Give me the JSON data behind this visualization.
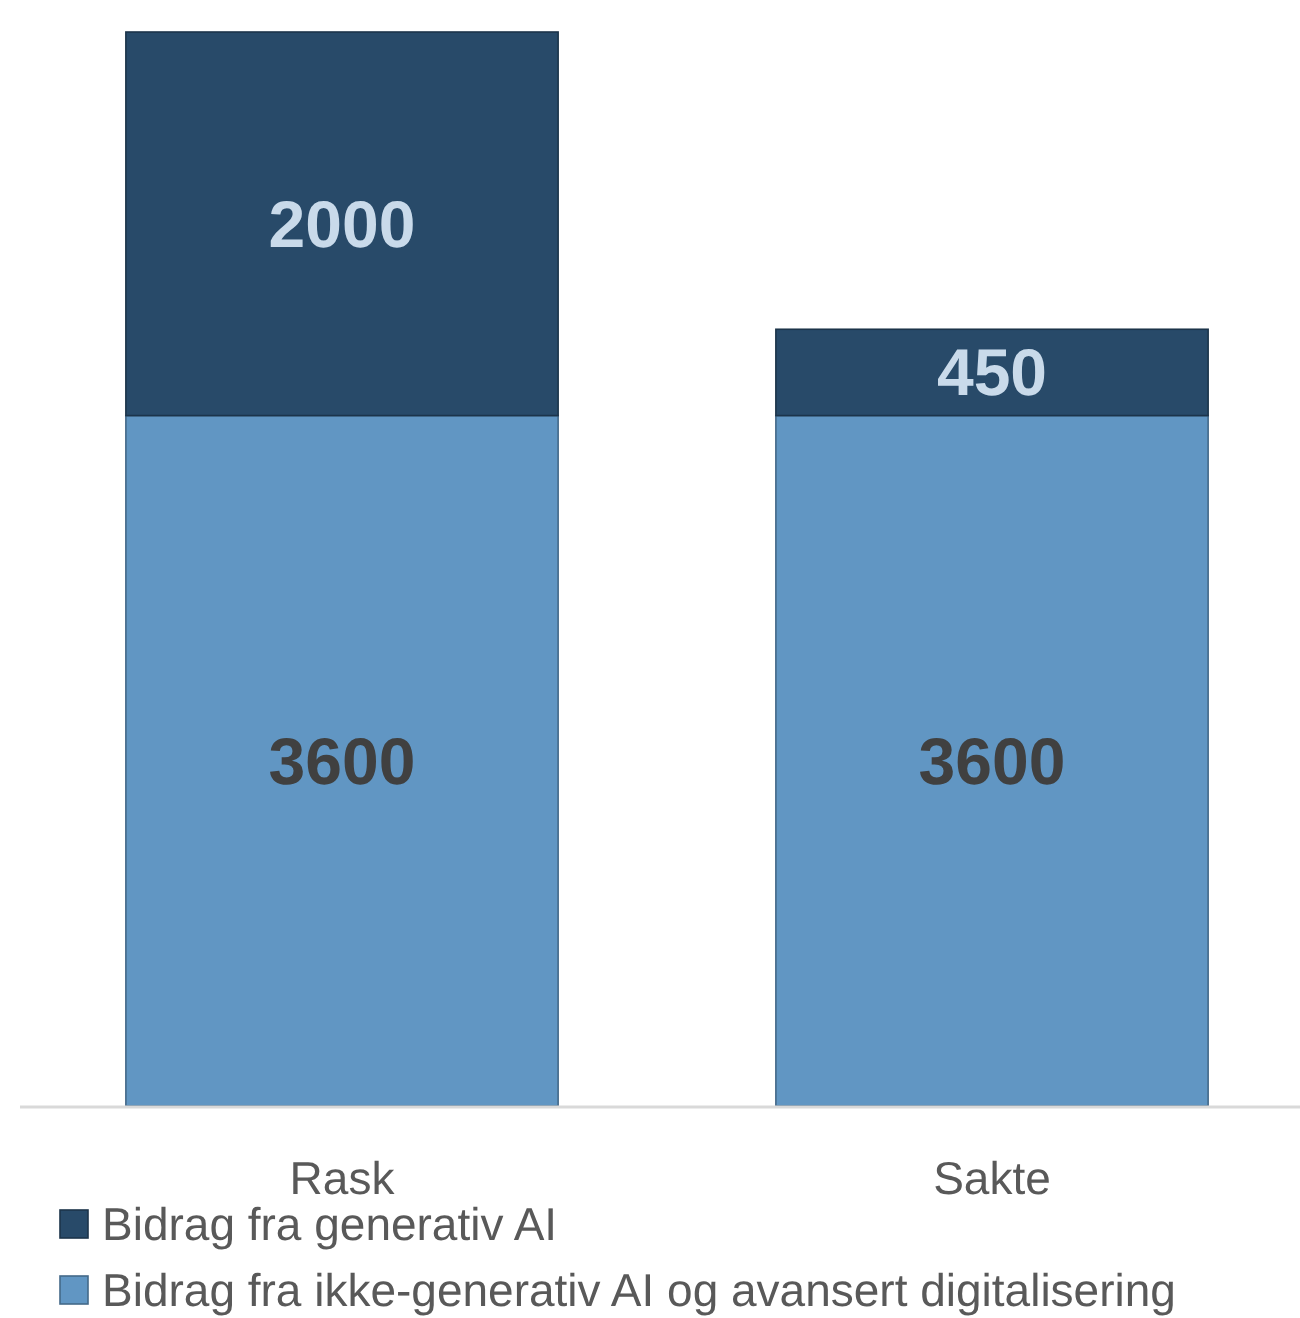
{
  "chart_data": {
    "type": "bar",
    "stacked": true,
    "categories": [
      "Rask",
      "Sakte"
    ],
    "series": [
      {
        "name": "Bidrag fra ikke-generativ AI og avansert digitalisering",
        "color": "#6196c3",
        "values": [
          3600,
          3600
        ]
      },
      {
        "name": "Bidrag fra generativ AI",
        "color": "#284a69",
        "values": [
          2000,
          450
        ]
      }
    ],
    "data_labels": true,
    "legend": "bottom left"
  }
}
